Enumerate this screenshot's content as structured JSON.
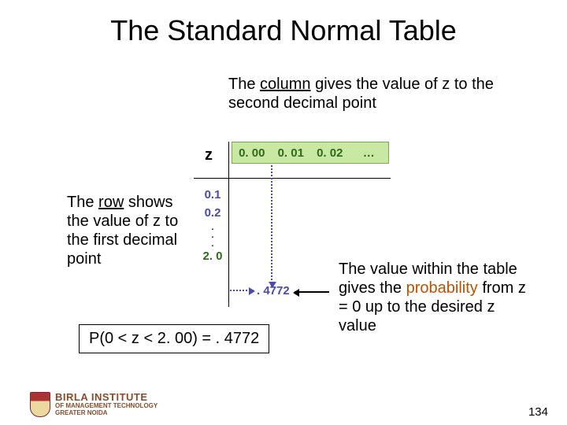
{
  "title": "The Standard Normal Table",
  "notes": {
    "column_prefix": "The ",
    "column_underlined": "column",
    "column_suffix": " gives the value of z to the second decimal point",
    "row_prefix": "The ",
    "row_underlined": "row",
    "row_suffix": " shows the value of z to the first decimal point",
    "prob_prefix": "The value within the table gives the ",
    "prob_highlight": "probability",
    "prob_suffix": " from z = 0 up to the desired z value"
  },
  "formula": "P(0 < z < 2. 00) = . 4772",
  "page_number": "134",
  "logo": {
    "line1": "BIRLA INSTITUTE",
    "line2": "OF MANAGEMENT TECHNOLOGY",
    "line3": "GREATER NOIDA"
  },
  "table": {
    "z_label": "z",
    "columns": [
      "0. 00",
      "0. 01",
      "0. 02",
      "…"
    ],
    "rows": [
      "0.1",
      "0.2"
    ],
    "final_row": "2. 0",
    "cell_value": ". 4772",
    "colors": {
      "header_bg": "#c9e8a3",
      "header_border": "#7aa84d",
      "header_text": "#2e6a1a",
      "row_text": "#4a4ab0",
      "arrow_color": "#4a4ab0"
    }
  }
}
